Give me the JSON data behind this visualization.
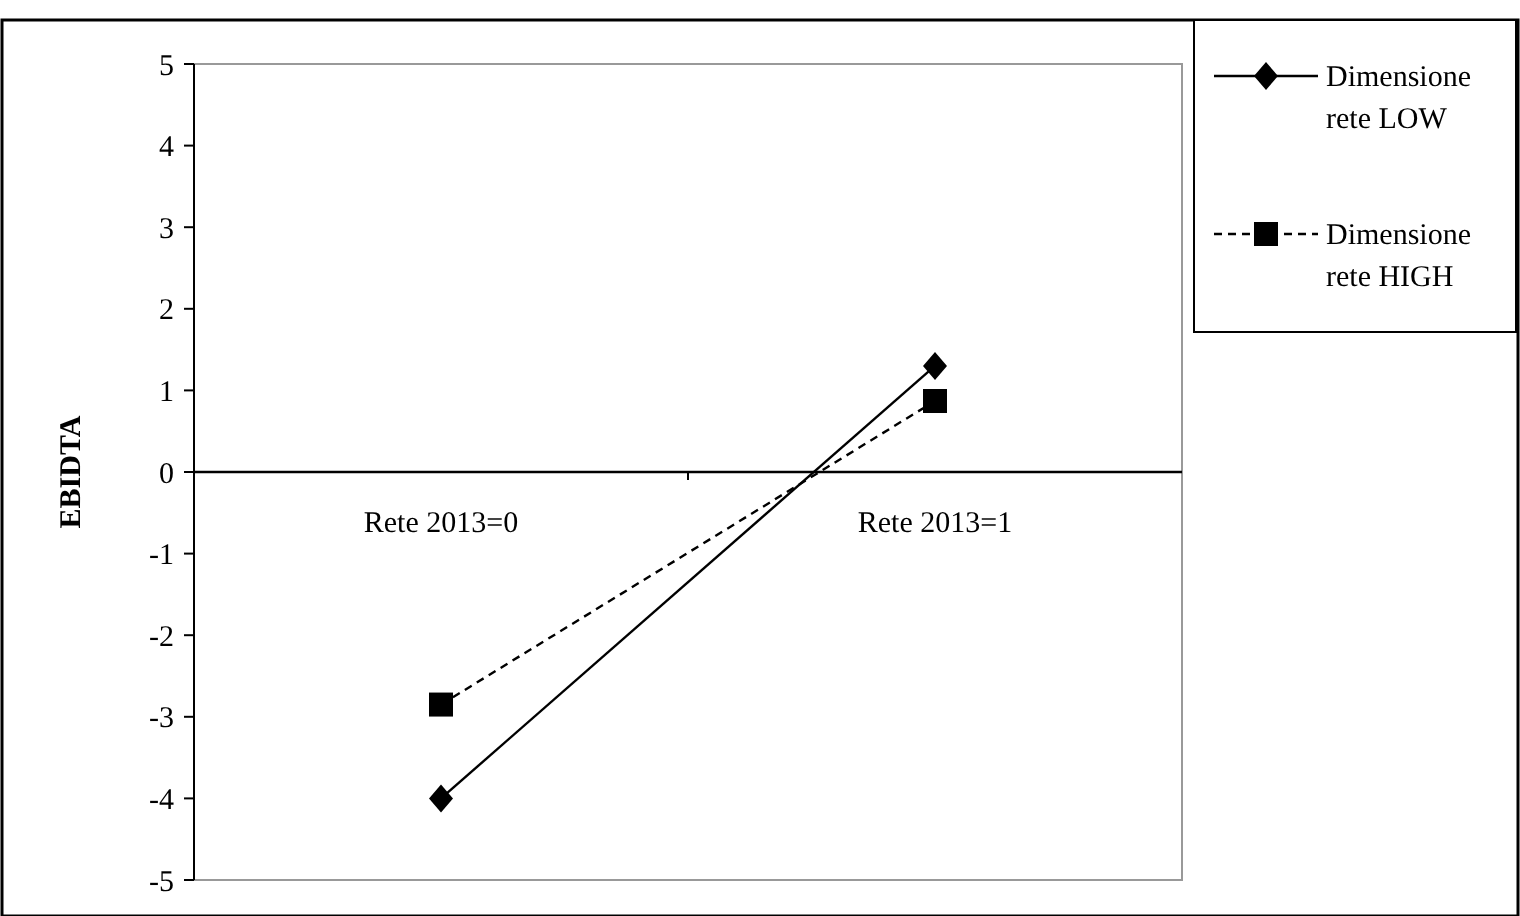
{
  "chart_data": {
    "type": "line",
    "ylabel": "EBIDTA",
    "categories": [
      "Rete 2013=0",
      "Rete 2013=1"
    ],
    "series": [
      {
        "name": "Dimensione rete LOW",
        "color": "#000000",
        "values": [
          -4.0,
          1.3
        ],
        "marker": "diamond",
        "line_style": "solid"
      },
      {
        "name": "Dimensione rete HIGH",
        "color": "#000000",
        "values": [
          -2.85,
          0.87
        ],
        "marker": "square",
        "line_style": "dashed"
      }
    ],
    "ylim": [
      -5,
      5
    ],
    "yticks": [
      -5,
      -4,
      -3,
      -2,
      -1,
      0,
      1,
      2,
      3,
      4,
      5
    ],
    "grid": false,
    "legend": "right"
  }
}
